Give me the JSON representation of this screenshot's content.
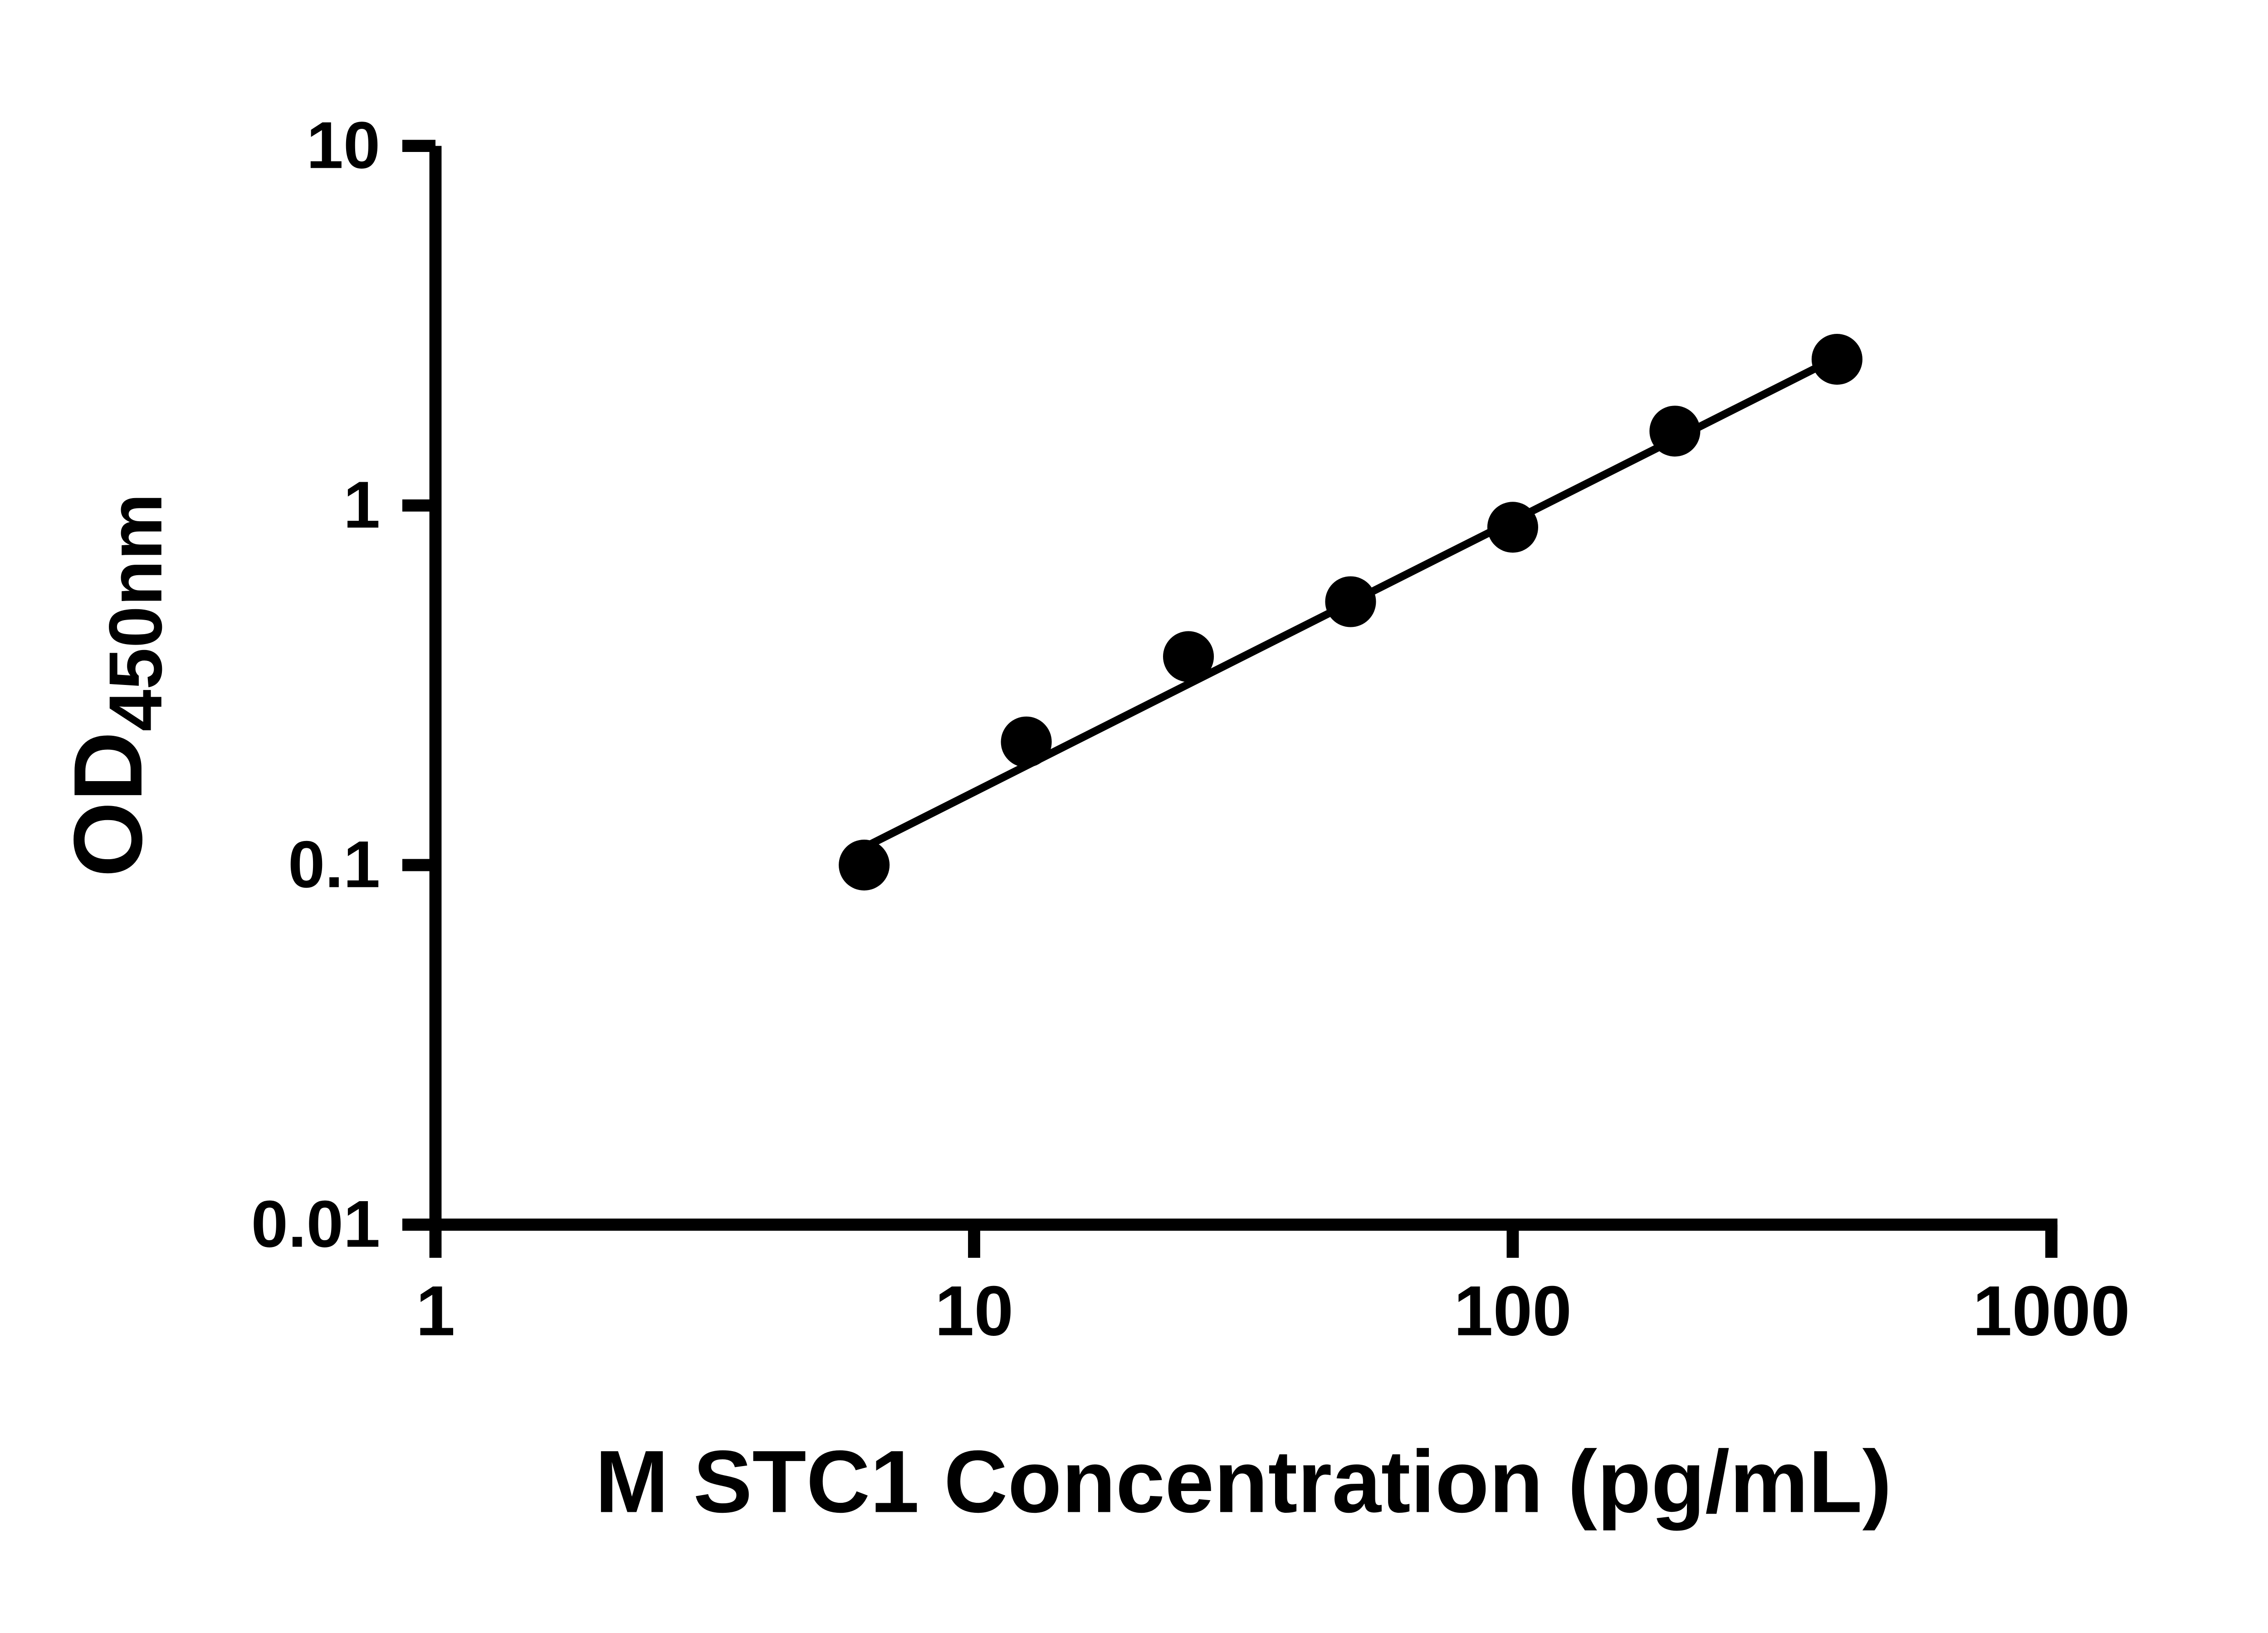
{
  "figure": {
    "background_color": "#ffffff",
    "foreground_color": "#000000"
  },
  "chart_data": {
    "type": "scatter",
    "title": "",
    "xlabel": "M STC1 Concentration (pg/mL)",
    "ylabel": "OD",
    "ylabel_subscript": "450nm",
    "x_scale": "log",
    "y_scale": "log",
    "xlim": [
      1,
      1000
    ],
    "ylim": [
      0.01,
      10
    ],
    "x_ticks": [
      1,
      10,
      100,
      1000
    ],
    "x_tick_labels": [
      "1",
      "10",
      "100",
      "1000"
    ],
    "y_ticks": [
      10,
      1,
      0.1,
      0.01
    ],
    "y_tick_labels": [
      "10",
      "1",
      "0.1",
      "0.01"
    ],
    "grid": false,
    "legend": "none",
    "marker": "circle",
    "marker_color": "#000000",
    "line_color": "#000000",
    "series": [
      {
        "name": "fit-line",
        "type": "line",
        "points": [
          {
            "x": 6.25,
            "y": 0.112
          },
          {
            "x": 400,
            "y": 2.58
          }
        ]
      },
      {
        "name": "standard-curve-points",
        "type": "scatter",
        "points": [
          {
            "x": 6.25,
            "y": 0.1
          },
          {
            "x": 12.5,
            "y": 0.22
          },
          {
            "x": 25,
            "y": 0.38
          },
          {
            "x": 50,
            "y": 0.54
          },
          {
            "x": 100,
            "y": 0.87
          },
          {
            "x": 200,
            "y": 1.61
          },
          {
            "x": 400,
            "y": 2.55
          }
        ]
      }
    ]
  }
}
